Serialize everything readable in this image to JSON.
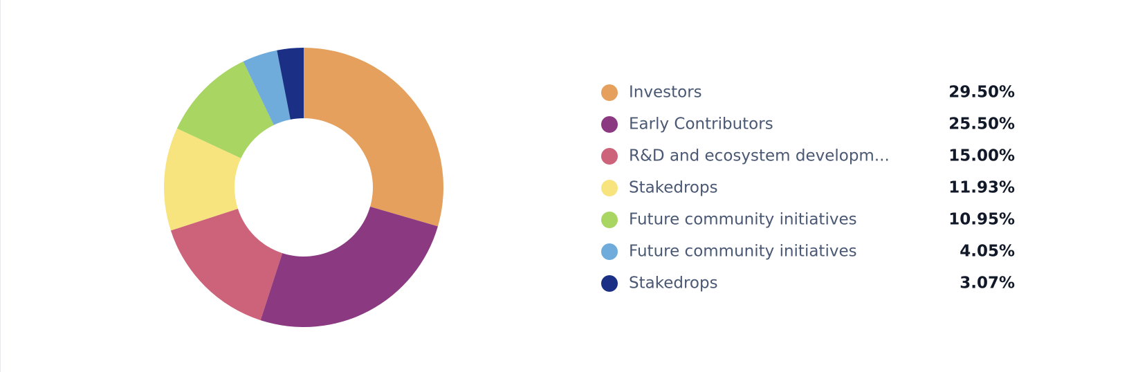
{
  "chart_data": {
    "type": "pie",
    "categories": [
      "Investors",
      "Early Contributors",
      "R&D and ecosystem developm...",
      "Stakedrops",
      "Future community initiatives",
      "Future community initiatives",
      "Stakedrops"
    ],
    "values": [
      29.5,
      25.5,
      15,
      11.93,
      10.95,
      4.05,
      3.07
    ],
    "value_labels": [
      "29.50%",
      "25.50%",
      "15.00%",
      "11.93%",
      "10.95%",
      "4.05%",
      "3.07%"
    ],
    "colors": [
      "#e4a05c",
      "#8b3a82",
      "#cc637a",
      "#f7e47f",
      "#a9d563",
      "#6facdb",
      "#1b2f85"
    ]
  }
}
